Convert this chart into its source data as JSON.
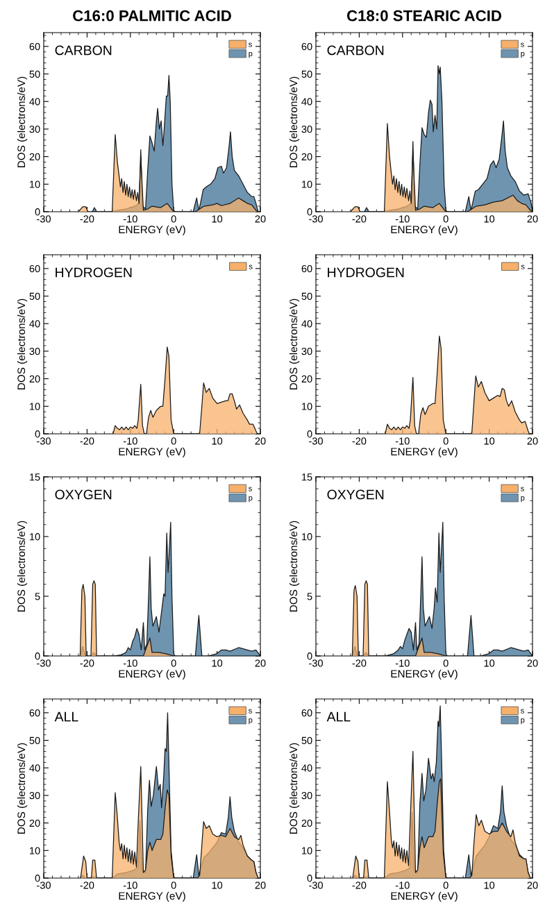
{
  "chart_data": [
    {
      "type": "area",
      "title": "C16:0 PALMITIC ACID",
      "xlabel": "ENERGY (eV)",
      "ylabel": "DOS (electrons/eV)",
      "annotations": [
        "CARBON"
      ],
      "xlim": [
        -30,
        20
      ],
      "xticks": [
        -30,
        -20,
        -10,
        0,
        10,
        20
      ],
      "ylim": [
        0,
        65
      ],
      "yticks": [
        0,
        10,
        20,
        30,
        40,
        50,
        60
      ],
      "legend": "top right",
      "series": [
        {
          "name": "s",
          "color": "#f7b06a",
          "x": [
            -22,
            -21,
            -20.3,
            -19.8,
            -14.2,
            -13.5,
            -13,
            -12.6,
            -12.3,
            -12,
            -11.7,
            -11.4,
            -11.1,
            -10.8,
            -10.5,
            -10.2,
            -9.9,
            -9.6,
            -9.3,
            -9,
            -8.6,
            -8.3,
            -8,
            -7.6,
            -7,
            -6,
            -5,
            -3,
            -1.5,
            -0.5,
            0,
            5,
            6,
            7,
            9,
            10,
            11,
            13,
            15,
            16,
            17,
            18,
            19,
            19.5
          ],
          "values": [
            0,
            1.8,
            1.8,
            0,
            0,
            28,
            18,
            13,
            9,
            12,
            7,
            11,
            6,
            10,
            5.5,
            9,
            5,
            8,
            4.5,
            8,
            4,
            7,
            3,
            20,
            0.5,
            1,
            2,
            1.5,
            3,
            1,
            0,
            0,
            1,
            2,
            2.5,
            3,
            2.2,
            3,
            5,
            4,
            3,
            2.5,
            0.5,
            0
          ]
        },
        {
          "name": "p",
          "color": "#6e94b0",
          "x": [
            -18.8,
            -18.3,
            -17.8,
            -14.2,
            -13,
            -11,
            -9,
            -8,
            -7.6,
            -7.2,
            -6.5,
            -6,
            -5.5,
            -5,
            -4.5,
            -4,
            -3.7,
            -3.3,
            -2.9,
            -2.5,
            -2.2,
            -1.7,
            -1.4,
            -1.1,
            -0.8,
            -0.4,
            0,
            0.3,
            4.5,
            5.3,
            5.8,
            6.3,
            6.8,
            7.5,
            8.5,
            9.5,
            10.2,
            11,
            11.5,
            12.2,
            12.8,
            13.1,
            13.5,
            14,
            15,
            16,
            17,
            18,
            18.5,
            19,
            19.5
          ],
          "values": [
            0,
            1.5,
            0,
            0,
            0.5,
            1,
            2,
            3,
            22.5,
            2,
            1,
            15,
            27.5,
            25,
            22,
            33,
            37.5,
            30,
            33,
            24,
            30,
            42,
            42,
            49.5,
            40,
            10,
            0.5,
            0,
            0,
            5,
            0.5,
            4,
            8,
            9,
            10,
            12,
            16,
            16.5,
            14,
            16,
            24,
            29,
            20,
            15,
            13,
            10,
            7,
            5.5,
            5.5,
            3,
            0
          ]
        }
      ]
    },
    {
      "type": "area",
      "title": "C18:0 STEARIC ACID",
      "xlabel": "ENERGY (eV)",
      "ylabel": "DOS (electrons/eV)",
      "annotations": [
        "CARBON"
      ],
      "xlim": [
        -30,
        20
      ],
      "xticks": [
        -30,
        -20,
        -10,
        0,
        10,
        20
      ],
      "ylim": [
        0,
        65
      ],
      "yticks": [
        0,
        10,
        20,
        30,
        40,
        50,
        60
      ],
      "legend": "top right",
      "series": [
        {
          "name": "s",
          "color": "#f7b06a",
          "x": [
            -22,
            -21,
            -20.3,
            -19.8,
            -14.2,
            -13.5,
            -13,
            -12.6,
            -12.3,
            -12,
            -11.7,
            -11.4,
            -11.1,
            -10.8,
            -10.5,
            -10.2,
            -9.9,
            -9.6,
            -9.3,
            -9,
            -8.6,
            -8.3,
            -8,
            -7.6,
            -7,
            -6,
            -5,
            -3,
            -1.5,
            -0.5,
            0,
            5,
            6,
            7,
            9,
            10,
            11,
            13,
            15.5,
            16.5,
            17.5,
            18.5,
            19.5,
            20
          ],
          "values": [
            0,
            1.8,
            1.8,
            0,
            0,
            32,
            20,
            14,
            10,
            13,
            8,
            12,
            7,
            11,
            6,
            10,
            5.5,
            9,
            5,
            8.5,
            4,
            7.5,
            3,
            22,
            0.5,
            1,
            2,
            1.5,
            3,
            1,
            0,
            0,
            1,
            2,
            2.5,
            3,
            3.5,
            4,
            6,
            4,
            3,
            2.5,
            0.5,
            0
          ]
        },
        {
          "name": "p",
          "color": "#6e94b0",
          "x": [
            -18.8,
            -18.3,
            -17.8,
            -14.2,
            -13,
            -11,
            -9,
            -8,
            -7.6,
            -7.2,
            -6.5,
            -6,
            -5.5,
            -5,
            -4.5,
            -4,
            -3.6,
            -3.2,
            -2.9,
            -2.5,
            -2.1,
            -1.8,
            -1.5,
            -1.3,
            -0.9,
            -0.4,
            0,
            0.3,
            4.5,
            5.3,
            5.8,
            6.3,
            6.8,
            7.5,
            8.5,
            9.5,
            10.3,
            11,
            11.6,
            12.3,
            12.9,
            13.3,
            13.7,
            14.2,
            15,
            16,
            17,
            18,
            19,
            19.7,
            20
          ],
          "values": [
            0,
            1.5,
            0,
            0,
            0.5,
            1,
            2,
            3,
            25.5,
            2,
            1,
            17,
            30.5,
            28,
            27,
            36,
            40.5,
            39,
            29,
            35,
            30,
            53,
            50,
            52.5,
            40,
            10,
            0.5,
            0,
            0,
            5.5,
            0.5,
            4,
            7.5,
            8,
            10,
            12,
            17,
            18.5,
            16,
            19,
            27,
            33,
            22,
            16,
            13,
            11,
            7.5,
            6,
            6.5,
            3,
            0
          ]
        }
      ]
    },
    {
      "type": "area",
      "xlabel": "ENERGY (eV)",
      "ylabel": "DOS (electrons/eV)",
      "annotations": [
        "HYDROGEN"
      ],
      "xlim": [
        -30,
        20
      ],
      "xticks": [
        -30,
        -20,
        -10,
        0,
        10,
        20
      ],
      "ylim": [
        0,
        65
      ],
      "yticks": [
        0,
        10,
        20,
        30,
        40,
        50,
        60
      ],
      "legend": "top right",
      "series": [
        {
          "name": "s",
          "color": "#f7b06a",
          "x": [
            -14,
            -13.5,
            -13,
            -12.5,
            -12,
            -11.5,
            -11,
            -10.5,
            -10,
            -9.5,
            -9,
            -8.5,
            -8.2,
            -7.6,
            -7.2,
            -6.8,
            -6.3,
            -5.8,
            -5.3,
            -4.8,
            -4,
            -3,
            -2.5,
            -2,
            -1.5,
            -1.1,
            -0.6,
            0,
            5.5,
            6,
            6.5,
            6.9,
            7.5,
            8.2,
            9,
            10,
            11,
            12,
            12.5,
            13,
            13.5,
            14,
            14.5,
            15.2,
            16,
            17,
            17.5,
            18.3,
            19,
            19.3
          ],
          "values": [
            0,
            3,
            2,
            1.5,
            2.5,
            1.5,
            2.5,
            1.5,
            2.5,
            2,
            3,
            2,
            5,
            18,
            3,
            0,
            0,
            6,
            8.5,
            6,
            8.5,
            10,
            10,
            20,
            31.5,
            28,
            5,
            0,
            0,
            0.3,
            10,
            18.5,
            15,
            16.5,
            13,
            11,
            11.5,
            12,
            12,
            14.5,
            14.5,
            12,
            9,
            10.5,
            7.5,
            5,
            3.5,
            3.5,
            1,
            0
          ]
        }
      ]
    },
    {
      "type": "area",
      "xlabel": "ENERGY (eV)",
      "ylabel": "DOS (electrons/eV)",
      "annotations": [
        "HYDROGEN"
      ],
      "xlim": [
        -30,
        20
      ],
      "xticks": [
        -30,
        -20,
        -10,
        0,
        10,
        20
      ],
      "ylim": [
        0,
        65
      ],
      "yticks": [
        0,
        10,
        20,
        30,
        40,
        50,
        60
      ],
      "legend": "top right",
      "series": [
        {
          "name": "s",
          "color": "#f7b06a",
          "x": [
            -14,
            -13.5,
            -13,
            -12.5,
            -12,
            -11.5,
            -11,
            -10.5,
            -10,
            -9.5,
            -9,
            -8.5,
            -8.2,
            -7.6,
            -7.2,
            -6.8,
            -6.3,
            -5.8,
            -5.3,
            -4.8,
            -4,
            -3,
            -2.5,
            -2,
            -1.5,
            -1.1,
            -0.6,
            0,
            5.5,
            6,
            6.5,
            6.9,
            7.5,
            8.2,
            9,
            10,
            11,
            12,
            12.5,
            13,
            13.5,
            14,
            14.5,
            15.2,
            16,
            17,
            17.5,
            18.3,
            19,
            19.3
          ],
          "values": [
            0,
            3.5,
            2,
            1.5,
            2.5,
            1.5,
            2.5,
            1.5,
            2.5,
            2,
            3,
            2,
            5,
            20.5,
            3,
            0,
            0,
            7,
            9.5,
            7,
            10,
            11,
            11,
            22,
            35.5,
            31,
            5,
            0,
            0,
            0.3,
            12,
            21,
            17,
            19,
            15,
            12,
            13,
            14,
            13.5,
            16.5,
            16,
            12,
            10,
            12,
            8,
            5,
            4,
            4.5,
            1,
            0
          ]
        }
      ]
    },
    {
      "type": "area",
      "xlabel": "ENERGY (eV)",
      "ylabel": "DOS (electrons/eV)",
      "annotations": [
        "OXYGEN"
      ],
      "xlim": [
        -30,
        20
      ],
      "xticks": [
        -30,
        -20,
        -10,
        0,
        10,
        20
      ],
      "ylim": [
        0,
        15
      ],
      "yticks": [
        0,
        5,
        10,
        15
      ],
      "legend": "top right",
      "series": [
        {
          "name": "s",
          "color": "#f7b06a",
          "x": [
            -21.6,
            -21.2,
            -20.9,
            -20.5,
            -20.2,
            -19.1,
            -18.7,
            -18.4,
            -18.1,
            -17.8,
            -7,
            -5.5,
            -5,
            -3.5,
            -2,
            0
          ],
          "values": [
            0,
            5.5,
            6,
            5,
            0,
            0,
            6,
            6.3,
            6,
            0,
            0,
            1.5,
            0.3,
            0.3,
            0.2,
            0
          ]
        },
        {
          "name": "p",
          "color": "#6e94b0",
          "x": [
            -21.6,
            -21,
            -20.4,
            -19,
            -18.5,
            -18,
            -14,
            -12,
            -11,
            -10.5,
            -10,
            -9.5,
            -9,
            -8.5,
            -8,
            -7.5,
            -7,
            -6.7,
            -6.2,
            -5.8,
            -5.5,
            -5.2,
            -4.8,
            -4,
            -3.4,
            -2.7,
            -2.3,
            -2,
            -1.6,
            -1.3,
            -1,
            -0.7,
            -0.4,
            0,
            0.3,
            5,
            5.8,
            6.5,
            8,
            10,
            11,
            12,
            13,
            15,
            17,
            18,
            19,
            20
          ],
          "values": [
            0,
            0.8,
            0,
            0,
            0.3,
            0,
            0,
            0.1,
            0.3,
            0.7,
            0.5,
            1.2,
            1.6,
            2.3,
            1.8,
            0.5,
            2.8,
            0.5,
            1,
            5,
            8.3,
            4,
            2.5,
            3.3,
            2,
            4,
            5.2,
            5,
            10.3,
            7,
            9,
            11.2,
            5,
            0.2,
            0,
            0,
            3.4,
            0,
            0,
            0.2,
            0.5,
            0.5,
            0.4,
            0.7,
            0.5,
            0.4,
            0.5,
            0
          ]
        }
      ]
    },
    {
      "type": "area",
      "xlabel": "ENERGY (eV)",
      "ylabel": "DOS (electrons/eV)",
      "annotations": [
        "OXYGEN"
      ],
      "xlim": [
        -30,
        20
      ],
      "xticks": [
        -30,
        -20,
        -10,
        0,
        10,
        20
      ],
      "ylim": [
        0,
        15
      ],
      "yticks": [
        0,
        5,
        10,
        15
      ],
      "legend": "top right",
      "series": [
        {
          "name": "s",
          "color": "#f7b06a",
          "x": [
            -21.6,
            -21.2,
            -20.9,
            -20.5,
            -20.2,
            -19.1,
            -18.7,
            -18.4,
            -18.1,
            -17.8,
            -7,
            -5.5,
            -5,
            -3.5,
            -2,
            0
          ],
          "values": [
            0,
            5.5,
            5.9,
            5,
            0,
            0,
            6,
            6.3,
            6,
            0,
            0,
            1.5,
            0.3,
            0.3,
            0.2,
            0
          ]
        },
        {
          "name": "p",
          "color": "#6e94b0",
          "x": [
            -21.6,
            -21,
            -20.4,
            -19,
            -18.5,
            -18,
            -14,
            -12,
            -11,
            -10.5,
            -10,
            -9.5,
            -9,
            -8.5,
            -8,
            -7.5,
            -7,
            -6.7,
            -6.2,
            -5.8,
            -5.5,
            -5.2,
            -4.8,
            -3.8,
            -3.2,
            -2.7,
            -2.4,
            -2,
            -1.6,
            -1.3,
            -1,
            -0.7,
            -0.4,
            0,
            0.3,
            5,
            5.8,
            6.5,
            8,
            10,
            11,
            12,
            13,
            15,
            17,
            18,
            19,
            20
          ],
          "values": [
            0,
            0.8,
            0,
            0,
            0.3,
            0,
            0,
            0.2,
            0.5,
            0.8,
            0.6,
            1.3,
            1.8,
            2.3,
            2,
            0.5,
            2.8,
            0.5,
            1,
            5,
            8.3,
            4,
            2.5,
            3.3,
            2.3,
            4,
            5.7,
            4.5,
            10.3,
            7,
            9,
            11.2,
            5,
            0.2,
            0,
            0,
            3.4,
            0,
            0,
            0.2,
            0.5,
            0.5,
            0.4,
            0.7,
            0.5,
            0.4,
            0.5,
            0
          ]
        }
      ]
    },
    {
      "type": "area",
      "xlabel": "ENERGY (eV)",
      "ylabel": "DOS (electrons/eV)",
      "annotations": [
        "ALL"
      ],
      "xlim": [
        -30,
        20
      ],
      "xticks": [
        -30,
        -20,
        -10,
        0,
        10,
        20
      ],
      "ylim": [
        0,
        65
      ],
      "yticks": [
        0,
        10,
        20,
        30,
        40,
        50,
        60
      ],
      "legend": "top right",
      "series": [
        {
          "name": "s",
          "color": "#f7b06a",
          "x": [
            -21.5,
            -20.8,
            -20.3,
            -20,
            -19,
            -18.7,
            -18.2,
            -17.8,
            -14.2,
            -13.5,
            -13,
            -12.6,
            -12.3,
            -12,
            -11.7,
            -11.4,
            -11.1,
            -10.8,
            -10.5,
            -10.2,
            -9.9,
            -9.6,
            -9.3,
            -9,
            -8.6,
            -8.2,
            -7.6,
            -7,
            -6.5,
            -6,
            -5.5,
            -5,
            -4,
            -3,
            -2.5,
            -2,
            -1.5,
            -1.1,
            -0.6,
            0,
            5.5,
            6,
            6.5,
            6.9,
            7.5,
            8.2,
            9,
            10,
            11,
            12,
            13,
            14,
            15,
            15.5,
            16,
            17,
            18,
            18.5,
            19,
            19.5
          ],
          "values": [
            0,
            8,
            6,
            0,
            0,
            6.5,
            6.5,
            0,
            0,
            31,
            22,
            13,
            10,
            12.5,
            7,
            12,
            7,
            11,
            6,
            10.5,
            5.5,
            10,
            5,
            9.5,
            4,
            20,
            40.5,
            2,
            3,
            10,
            13,
            10,
            14,
            14,
            16,
            25,
            32,
            30,
            8,
            0,
            0,
            1,
            12,
            20.5,
            18,
            19,
            16,
            15,
            15.5,
            15,
            18,
            15,
            14,
            15.5,
            12,
            8,
            6.5,
            6,
            2,
            0
          ]
        },
        {
          "name": "p",
          "color": "#6e94b0",
          "x": [
            -21.5,
            -21,
            -20.4,
            -19,
            -18.5,
            -18,
            -14,
            -13,
            -11,
            -9,
            -8.2,
            -7.8,
            -7.3,
            -6.5,
            -6,
            -5.6,
            -5.2,
            -4.7,
            -4,
            -3.5,
            -3.1,
            -2.8,
            -2.3,
            -2,
            -1.7,
            -1.4,
            -1,
            -0.6,
            0,
            0.3,
            4.5,
            5.3,
            5.8,
            6.5,
            7,
            8,
            9,
            10,
            11,
            12,
            12.6,
            13,
            13.4,
            14,
            15,
            16,
            17,
            18,
            18.5,
            19,
            19.5
          ],
          "values": [
            0,
            1,
            0,
            0,
            0.5,
            0,
            0,
            1.5,
            2,
            3,
            4,
            21,
            3,
            2,
            25,
            35.5,
            26,
            30,
            40.5,
            32,
            34,
            25.5,
            37,
            47,
            46,
            60,
            35,
            10,
            0.5,
            0,
            0,
            8.5,
            1,
            5,
            7.5,
            9,
            11,
            13,
            16.5,
            16,
            22,
            29.5,
            22,
            17,
            13,
            11,
            8,
            6.5,
            6,
            2,
            0
          ]
        }
      ]
    },
    {
      "type": "area",
      "xlabel": "ENERGY (eV)",
      "ylabel": "DOS (electrons/eV)",
      "annotations": [
        "ALL"
      ],
      "xlim": [
        -30,
        20
      ],
      "xticks": [
        -30,
        -20,
        -10,
        0,
        10,
        20
      ],
      "ylim": [
        0,
        65
      ],
      "yticks": [
        0,
        10,
        20,
        30,
        40,
        50,
        60
      ],
      "legend": "top right",
      "series": [
        {
          "name": "s",
          "color": "#f7b06a",
          "x": [
            -21.5,
            -20.8,
            -20.3,
            -20,
            -19,
            -18.7,
            -18.2,
            -17.8,
            -14.2,
            -13.5,
            -13,
            -12.6,
            -12.3,
            -12,
            -11.7,
            -11.4,
            -11.1,
            -10.8,
            -10.5,
            -10.2,
            -9.9,
            -9.6,
            -9.3,
            -9,
            -8.6,
            -8.2,
            -7.6,
            -7,
            -6.5,
            -6,
            -5.5,
            -5,
            -4,
            -3,
            -2.5,
            -2,
            -1.5,
            -1.2,
            -0.6,
            0,
            5.5,
            6,
            6.5,
            7,
            7.6,
            8.2,
            9,
            10,
            11,
            12,
            13,
            14,
            15,
            15.5,
            16,
            17,
            18,
            18.5,
            19,
            19.5
          ],
          "values": [
            0,
            8,
            6,
            0,
            0,
            6.5,
            6.5,
            0,
            0,
            35,
            24,
            14,
            11,
            13.5,
            8,
            13,
            8,
            12,
            7,
            11,
            6,
            10.5,
            5.5,
            10,
            4.5,
            22,
            46,
            2,
            3,
            11,
            15,
            11,
            15,
            15,
            17,
            27,
            35,
            36,
            9,
            0,
            0,
            1,
            13,
            23,
            19,
            21,
            17,
            16,
            17,
            17,
            20,
            17,
            15,
            17.5,
            13,
            8,
            7,
            7,
            2,
            0
          ]
        },
        {
          "name": "p",
          "color": "#6e94b0",
          "x": [
            -21.5,
            -21,
            -20.4,
            -19,
            -18.5,
            -18,
            -14,
            -13,
            -11,
            -9,
            -8.2,
            -7.8,
            -7.3,
            -6.5,
            -6,
            -5.5,
            -5.1,
            -4.6,
            -4,
            -3.4,
            -3,
            -2.7,
            -2.2,
            -1.8,
            -1.6,
            -1.3,
            -0.9,
            -0.5,
            0,
            0.3,
            4.5,
            5.3,
            5.8,
            6.5,
            7,
            8,
            9,
            10,
            11,
            12,
            12.6,
            13,
            13.4,
            14,
            15,
            16,
            17,
            18,
            18.5,
            19,
            19.5
          ],
          "values": [
            0,
            1,
            0,
            0,
            0.5,
            0,
            0,
            1.5,
            2,
            3,
            4,
            24,
            3,
            2,
            27,
            38,
            28,
            32,
            43.5,
            36,
            38,
            35,
            42,
            57,
            55,
            62.5,
            38,
            10,
            0.5,
            0,
            0,
            8.5,
            1,
            5,
            8,
            10,
            12,
            15,
            19,
            18,
            24,
            33.5,
            24,
            19,
            14,
            12,
            8.5,
            7,
            6.5,
            2,
            0
          ]
        }
      ]
    }
  ]
}
